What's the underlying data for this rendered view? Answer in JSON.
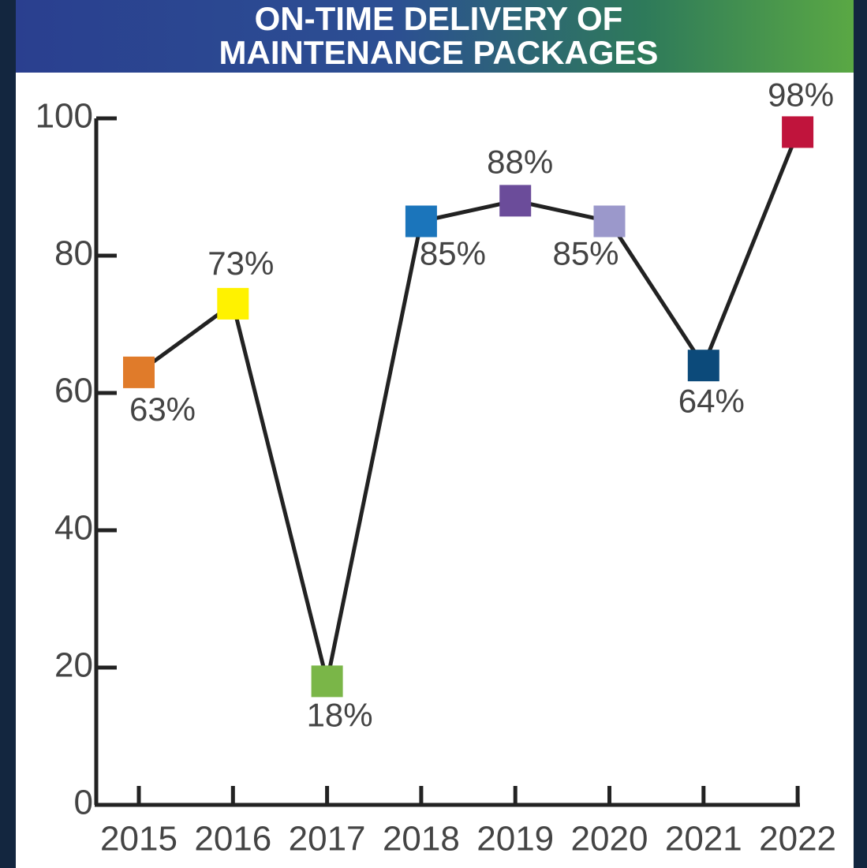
{
  "chart_data": {
    "type": "line",
    "title": [
      "ON-TIME DELIVERY OF",
      "MAINTENANCE PACKAGES"
    ],
    "categories": [
      "2015",
      "2016",
      "2017",
      "2018",
      "2019",
      "2020",
      "2021",
      "2022"
    ],
    "values": [
      63,
      73,
      18,
      85,
      88,
      85,
      64,
      98
    ],
    "value_labels": [
      "63%",
      "73%",
      "18%",
      "85%",
      "88%",
      "85%",
      "64%",
      "98%"
    ],
    "color": "#222222",
    "marker_colors": [
      "#e07b2a",
      "#fff200",
      "#7ab648",
      "#1b75bb",
      "#6b4c9a",
      "#9b98cb",
      "#0c4a7a",
      "#c0143c"
    ],
    "ylim": [
      0,
      100
    ],
    "yticks": [
      0,
      20,
      40,
      60,
      80,
      100
    ],
    "grid": false
  }
}
